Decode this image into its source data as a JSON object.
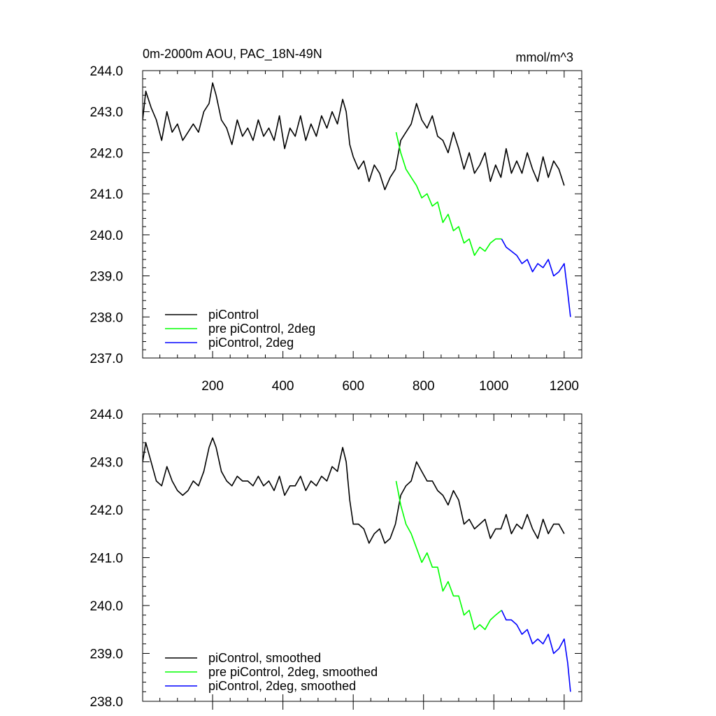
{
  "figure": {
    "title": "0m-2000m AOU, PAC_18N-49N",
    "units": "mmol/m^3"
  },
  "colors": {
    "piControl": "#000000",
    "pre_piControl_2deg": "#00ff00",
    "piControl_2deg": "#0000ff"
  },
  "chart_data": [
    {
      "type": "line",
      "panel": "top",
      "title": "0m-2000m AOU, PAC_18N-49N",
      "units_label": "mmol/m^3",
      "xlabel": "",
      "ylabel": "",
      "xlim": [
        1,
        1250
      ],
      "ylim": [
        237.0,
        244.0
      ],
      "x_ticks": [
        200,
        400,
        600,
        800,
        1000,
        1200
      ],
      "x_tick_labels": [
        "200",
        "400",
        "600",
        "800",
        "1000",
        "1200"
      ],
      "y_ticks": [
        237,
        238,
        239,
        240,
        241,
        242,
        243,
        244
      ],
      "y_tick_labels": [
        "237.0",
        "238.0",
        "239.0",
        "240.0",
        "241.0",
        "242.0",
        "243.0",
        "244.0"
      ],
      "legend_position": "bottom-left",
      "series": [
        {
          "name": "piControl",
          "color": "#000000",
          "x": [
            1,
            10,
            25,
            40,
            55,
            70,
            85,
            100,
            115,
            130,
            145,
            160,
            175,
            190,
            200,
            210,
            225,
            240,
            255,
            270,
            285,
            300,
            315,
            330,
            345,
            360,
            375,
            390,
            405,
            420,
            435,
            450,
            465,
            480,
            495,
            510,
            525,
            540,
            555,
            570,
            580,
            590,
            600,
            615,
            630,
            645,
            660,
            675,
            690,
            705,
            720,
            735,
            750,
            765,
            780,
            795,
            810,
            825,
            840,
            855,
            870,
            885,
            900,
            915,
            930,
            945,
            960,
            975,
            990,
            1005,
            1020,
            1035,
            1050,
            1065,
            1080,
            1095,
            1110,
            1125,
            1140,
            1155,
            1170,
            1185,
            1200
          ],
          "y": [
            242.8,
            243.5,
            243.1,
            242.8,
            242.3,
            243.0,
            242.5,
            242.7,
            242.3,
            242.5,
            242.7,
            242.5,
            243.0,
            243.2,
            243.7,
            243.4,
            242.8,
            242.6,
            242.2,
            242.8,
            242.4,
            242.6,
            242.3,
            242.8,
            242.4,
            242.6,
            242.3,
            242.9,
            242.1,
            242.6,
            242.4,
            242.9,
            242.3,
            242.7,
            242.4,
            242.9,
            242.6,
            243.0,
            242.7,
            243.3,
            243.0,
            242.2,
            241.9,
            241.6,
            241.8,
            241.3,
            241.7,
            241.5,
            241.1,
            241.4,
            241.6,
            242.3,
            242.5,
            242.7,
            243.2,
            242.8,
            242.6,
            242.9,
            242.4,
            242.3,
            242.0,
            242.5,
            242.1,
            241.6,
            242.0,
            241.5,
            241.7,
            242.0,
            241.3,
            241.7,
            241.4,
            242.1,
            241.5,
            241.8,
            241.5,
            242.0,
            241.6,
            241.3,
            241.9,
            241.4,
            241.8,
            241.6,
            241.2
          ]
        },
        {
          "name": "pre piControl, 2deg",
          "color": "#00ff00",
          "x": [
            722,
            735,
            750,
            765,
            780,
            795,
            810,
            825,
            840,
            855,
            870,
            885,
            900,
            915,
            930,
            945,
            960,
            975,
            990,
            1005,
            1022
          ],
          "y": [
            242.5,
            242.0,
            241.6,
            241.4,
            241.2,
            240.9,
            241.0,
            240.7,
            240.8,
            240.3,
            240.5,
            240.1,
            240.2,
            239.8,
            239.9,
            239.5,
            239.7,
            239.6,
            239.8,
            239.9,
            239.9
          ]
        },
        {
          "name": "piControl, 2deg",
          "color": "#0000ff",
          "x": [
            1022,
            1035,
            1050,
            1065,
            1080,
            1095,
            1110,
            1125,
            1140,
            1155,
            1170,
            1185,
            1200,
            1210,
            1218
          ],
          "y": [
            239.9,
            239.7,
            239.6,
            239.5,
            239.3,
            239.4,
            239.1,
            239.3,
            239.2,
            239.4,
            239.0,
            239.1,
            239.3,
            238.6,
            238.0
          ]
        }
      ]
    },
    {
      "type": "line",
      "panel": "bottom",
      "title": "",
      "xlabel": "",
      "ylabel": "",
      "xlim": [
        1,
        1250
      ],
      "ylim": [
        238.0,
        244.0
      ],
      "x_ticks": [
        200,
        400,
        600,
        800,
        1000,
        1200
      ],
      "x_tick_labels": [],
      "y_ticks": [
        238,
        239,
        240,
        241,
        242,
        243,
        244
      ],
      "y_tick_labels": [
        "238.0",
        "239.0",
        "240.0",
        "241.0",
        "242.0",
        "243.0",
        "244.0"
      ],
      "legend_position": "bottom-left",
      "series": [
        {
          "name": "piControl, smoothed",
          "color": "#000000",
          "x": [
            1,
            10,
            25,
            40,
            55,
            70,
            85,
            100,
            115,
            130,
            145,
            160,
            175,
            190,
            200,
            210,
            225,
            240,
            255,
            270,
            285,
            300,
            315,
            330,
            345,
            360,
            375,
            390,
            405,
            420,
            435,
            450,
            465,
            480,
            495,
            510,
            525,
            540,
            555,
            570,
            580,
            590,
            600,
            615,
            630,
            645,
            660,
            675,
            690,
            705,
            720,
            735,
            750,
            765,
            780,
            795,
            810,
            825,
            840,
            855,
            870,
            885,
            900,
            915,
            930,
            945,
            960,
            975,
            990,
            1005,
            1020,
            1035,
            1050,
            1065,
            1080,
            1095,
            1110,
            1125,
            1140,
            1155,
            1170,
            1185,
            1200
          ],
          "y": [
            243.0,
            243.4,
            243.0,
            242.6,
            242.5,
            242.9,
            242.6,
            242.4,
            242.3,
            242.4,
            242.6,
            242.5,
            242.8,
            243.3,
            243.5,
            243.3,
            242.8,
            242.6,
            242.5,
            242.7,
            242.6,
            242.6,
            242.5,
            242.7,
            242.5,
            242.6,
            242.4,
            242.7,
            242.3,
            242.5,
            242.5,
            242.7,
            242.4,
            242.6,
            242.5,
            242.7,
            242.6,
            242.9,
            242.8,
            243.3,
            243.0,
            242.2,
            241.7,
            241.7,
            241.6,
            241.3,
            241.5,
            241.6,
            241.3,
            241.4,
            241.7,
            242.3,
            242.5,
            242.6,
            243.0,
            242.8,
            242.6,
            242.6,
            242.4,
            242.3,
            242.1,
            242.4,
            242.2,
            241.7,
            241.8,
            241.6,
            241.7,
            241.8,
            241.4,
            241.6,
            241.6,
            241.9,
            241.5,
            241.7,
            241.6,
            241.9,
            241.6,
            241.4,
            241.8,
            241.5,
            241.7,
            241.7,
            241.5
          ]
        },
        {
          "name": "pre piControl, 2deg, smoothed",
          "color": "#00ff00",
          "x": [
            722,
            735,
            750,
            765,
            780,
            795,
            810,
            825,
            840,
            855,
            870,
            885,
            900,
            915,
            930,
            945,
            960,
            975,
            990,
            1005,
            1022
          ],
          "y": [
            242.6,
            242.1,
            241.7,
            241.5,
            241.2,
            240.9,
            241.1,
            240.8,
            240.8,
            240.3,
            240.5,
            240.2,
            240.2,
            239.8,
            239.9,
            239.5,
            239.6,
            239.5,
            239.7,
            239.8,
            239.9
          ]
        },
        {
          "name": "piControl, 2deg, smoothed",
          "color": "#0000ff",
          "x": [
            1022,
            1035,
            1050,
            1065,
            1080,
            1095,
            1110,
            1125,
            1140,
            1155,
            1170,
            1185,
            1200,
            1210,
            1218
          ],
          "y": [
            239.9,
            239.7,
            239.7,
            239.6,
            239.4,
            239.5,
            239.2,
            239.3,
            239.2,
            239.4,
            239.0,
            239.1,
            239.3,
            238.8,
            238.2
          ]
        }
      ]
    }
  ]
}
